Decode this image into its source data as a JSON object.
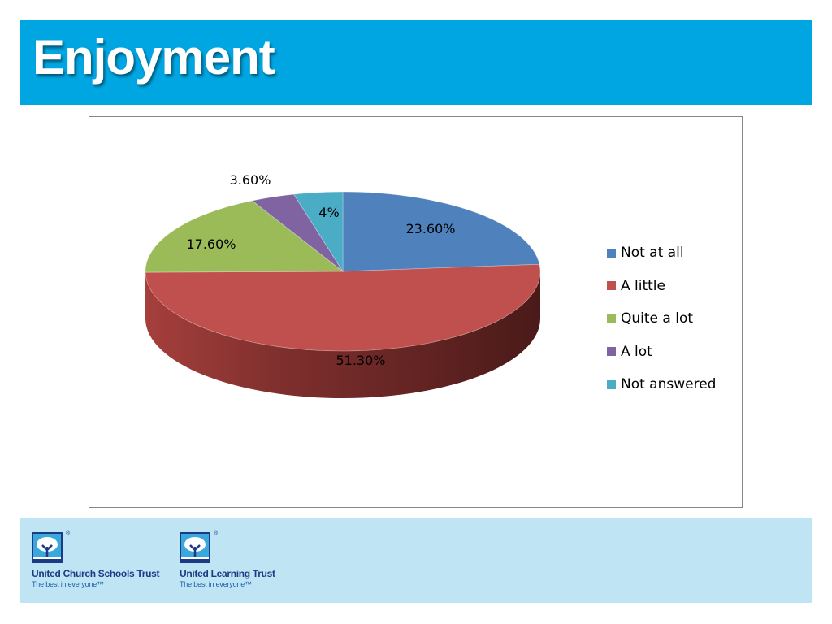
{
  "slide": {
    "title": "Enjoyment"
  },
  "colors": {
    "title_bar": "#00a6e2",
    "footer_band": "#bfe4f4",
    "logo_text": "#1b3b86"
  },
  "chart_data": {
    "type": "pie",
    "style": "3d-exploded-perspective",
    "categories": [
      "Not at all",
      "A little",
      "Quite a lot",
      "A lot",
      "Not answered"
    ],
    "values": [
      23.6,
      51.3,
      17.6,
      3.6,
      4
    ],
    "data_labels": [
      "23.60%",
      "51.30%",
      "17.60%",
      "3.60%",
      "4%"
    ],
    "colors": [
      "#4f81bd",
      "#c0504d",
      "#9bbb59",
      "#8064a2",
      "#4bacc6"
    ],
    "legend_position": "right"
  },
  "logos": [
    {
      "name": "United Church Schools Trust",
      "tagline": "The best in everyone™",
      "mark": "®"
    },
    {
      "name": "United Learning Trust",
      "tagline": "The best in everyone™",
      "mark": "®"
    }
  ]
}
